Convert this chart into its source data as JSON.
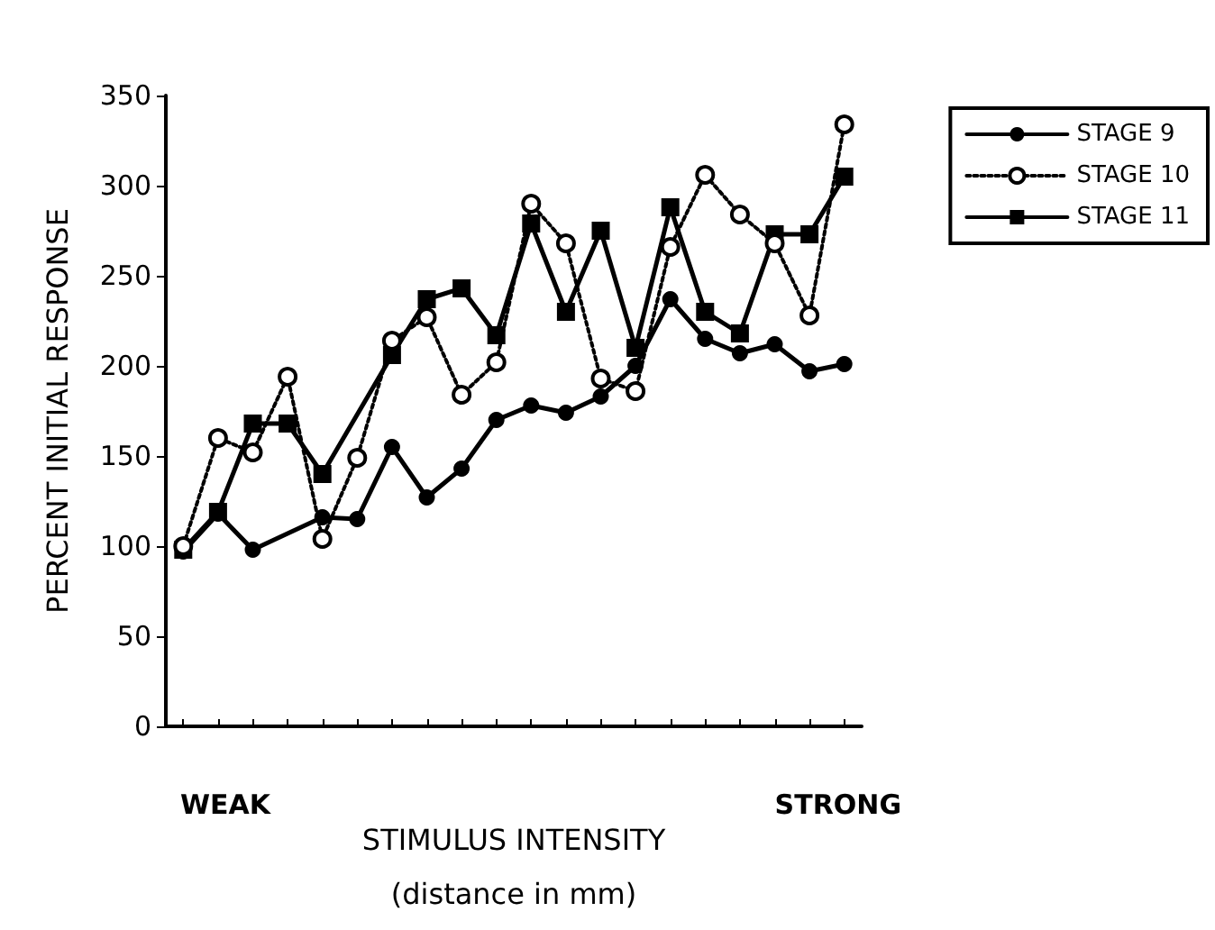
{
  "chart_data": {
    "type": "line",
    "xlabel": "STIMULUS INTENSITY\n(distance in mm)",
    "ylabel": "PERCENT INITIAL RESPONSE",
    "categories": [
      null,
      null,
      null,
      null,
      null,
      null,
      null,
      null,
      null,
      null,
      null,
      null,
      null,
      null,
      null,
      null,
      null,
      null,
      null,
      null
    ],
    "series": [
      {
        "name": "STAGE 9",
        "color": "#000000",
        "marker": "circle",
        "line_style": "solid",
        "values": [
          97,
          118,
          98,
          null,
          116,
          115,
          155,
          127,
          143,
          170,
          178,
          174,
          183,
          200,
          237,
          215,
          207,
          212,
          197,
          201
        ]
      },
      {
        "name": "STAGE 10",
        "color": "#000000",
        "marker": "circle",
        "line_style": "dotted",
        "values": [
          100,
          160,
          152,
          194,
          104,
          149,
          214,
          227,
          184,
          202,
          290,
          268,
          193,
          186,
          266,
          306,
          284,
          268,
          228,
          334
        ]
      },
      {
        "name": "STAGE 11",
        "color": "#000000",
        "marker": "square",
        "line_style": "solid",
        "values": [
          98,
          119,
          168,
          168,
          140,
          null,
          206,
          237,
          243,
          217,
          279,
          230,
          275,
          210,
          288,
          230,
          218,
          273,
          273,
          305
        ]
      }
    ],
    "ylim": [
      0,
      350
    ],
    "yticks": [
      0,
      50,
      100,
      150,
      200,
      250,
      300,
      350
    ],
    "grid": false,
    "legend": "top right",
    "tick_labels": "y",
    "annotations": [
      "WEAK",
      "STRONG"
    ]
  }
}
